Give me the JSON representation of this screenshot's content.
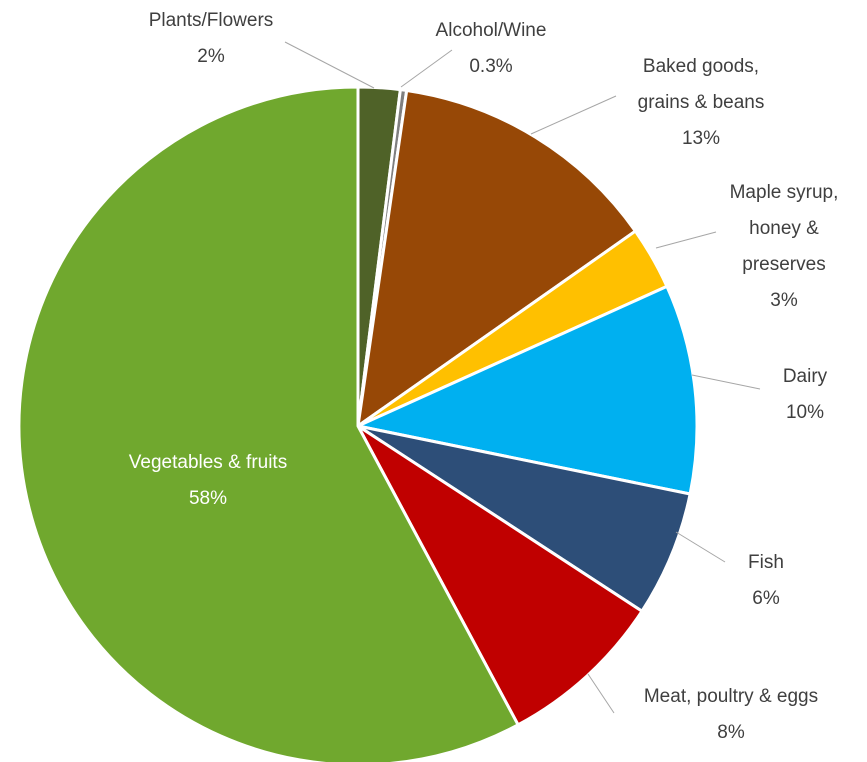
{
  "chart_data": {
    "type": "pie",
    "start_angle_deg": 0,
    "direction": "clockwise",
    "slices": [
      {
        "label": [
          "Plants/Flowers"
        ],
        "value_text": "2%",
        "value": 2,
        "color": "#4f6228"
      },
      {
        "label": [
          "Alcohol/Wine"
        ],
        "value_text": "0.3%",
        "value": 0.3,
        "color": "#7f7f7f"
      },
      {
        "label": [
          "Baked goods,",
          "grains & beans"
        ],
        "value_text": "13%",
        "value": 13,
        "color": "#974806"
      },
      {
        "label": [
          "Maple syrup,",
          "honey &",
          "preserves"
        ],
        "value_text": "3%",
        "value": 3,
        "color": "#ffc000"
      },
      {
        "label": [
          "Dairy"
        ],
        "value_text": "10%",
        "value": 10,
        "color": "#00b0f0"
      },
      {
        "label": [
          "Fish"
        ],
        "value_text": "6%",
        "value": 6,
        "color": "#2d4e78"
      },
      {
        "label": [
          "Meat, poultry & eggs"
        ],
        "value_text": "8%",
        "value": 8,
        "color": "#c00000"
      },
      {
        "label": [
          "Vegetables & fruits"
        ],
        "value_text": "58%",
        "value": 58,
        "color": "#70a82e"
      }
    ],
    "title": "",
    "legend": "none",
    "data_labels": "outside with leader lines; largest slice labeled inside"
  }
}
